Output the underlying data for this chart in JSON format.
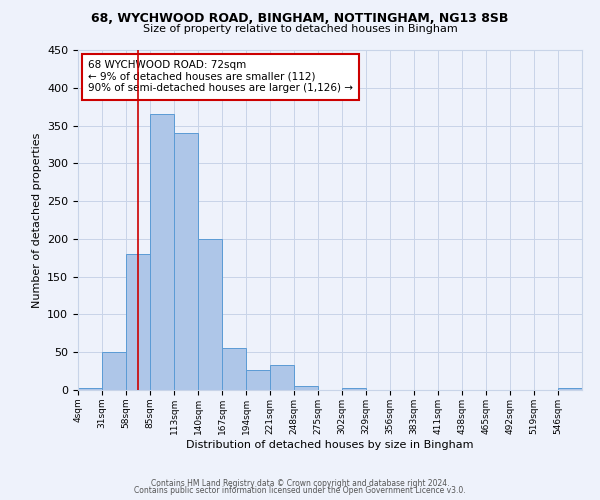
{
  "title": "68, WYCHWOOD ROAD, BINGHAM, NOTTINGHAM, NG13 8SB",
  "subtitle": "Size of property relative to detached houses in Bingham",
  "xlabel": "Distribution of detached houses by size in Bingham",
  "ylabel": "Number of detached properties",
  "bar_color": "#aec6e8",
  "bar_edge_color": "#5b9bd5",
  "background_color": "#eef2fb",
  "grid_color": "#c8d4e8",
  "vline_x": 72,
  "vline_color": "#cc0000",
  "annotation_lines": [
    "68 WYCHWOOD ROAD: 72sqm",
    "← 9% of detached houses are smaller (112)",
    "90% of semi-detached houses are larger (1,126) →"
  ],
  "annotation_box_color": "#cc0000",
  "bin_edges": [
    4,
    31,
    58,
    85,
    112,
    139,
    166,
    193,
    220,
    247,
    274,
    301,
    328,
    355,
    382,
    409,
    436,
    463,
    490,
    517,
    544,
    571
  ],
  "bin_labels": [
    "4sqm",
    "31sqm",
    "58sqm",
    "85sqm",
    "113sqm",
    "140sqm",
    "167sqm",
    "194sqm",
    "221sqm",
    "248sqm",
    "275sqm",
    "302sqm",
    "329sqm",
    "356sqm",
    "383sqm",
    "411sqm",
    "438sqm",
    "465sqm",
    "492sqm",
    "519sqm",
    "546sqm"
  ],
  "counts": [
    3,
    50,
    180,
    365,
    340,
    200,
    55,
    26,
    33,
    5,
    0,
    3,
    0,
    0,
    0,
    0,
    0,
    0,
    0,
    0,
    3
  ],
  "ylim": [
    0,
    450
  ],
  "yticks": [
    0,
    50,
    100,
    150,
    200,
    250,
    300,
    350,
    400,
    450
  ],
  "footer1": "Contains HM Land Registry data © Crown copyright and database right 2024.",
  "footer2": "Contains public sector information licensed under the Open Government Licence v3.0."
}
